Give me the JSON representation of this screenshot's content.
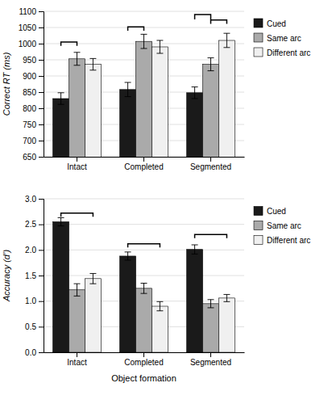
{
  "chart_data": [
    {
      "type": "bar",
      "categories": [
        "Intact",
        "Completed",
        "Segmented"
      ],
      "series": [
        {
          "name": "Cued",
          "color": "#1a1a1a",
          "values": [
            830,
            858,
            848
          ],
          "errors": [
            18,
            22,
            18
          ]
        },
        {
          "name": "Same arc",
          "color": "#aaaaaa",
          "values": [
            953,
            1007,
            936
          ],
          "errors": [
            20,
            22,
            20
          ]
        },
        {
          "name": "Different arc",
          "color": "#f0f0f0",
          "values": [
            936,
            990,
            1010
          ],
          "errors": [
            18,
            20,
            22
          ]
        }
      ],
      "ylabel": "Correct RT (ms)",
      "ylim": [
        650,
        1100
      ],
      "yticks": [
        650,
        700,
        750,
        800,
        850,
        900,
        950,
        1000,
        1050,
        1100
      ],
      "grid": true,
      "legend": "right",
      "brackets": [
        {
          "category": "Intact",
          "from": "Cued",
          "to": "Same arc",
          "y": 1005,
          "drop": 12
        },
        {
          "category": "Completed",
          "from": "Cued",
          "to": "Same arc",
          "y": 1052,
          "drop": 12
        },
        {
          "category": "Segmented",
          "from": "Cued",
          "to": "Same arc",
          "y": 1090,
          "drop": 15
        },
        {
          "category": "Segmented",
          "from": "Same arc",
          "to": "Different arc",
          "y": 1073,
          "drop": 12
        }
      ]
    },
    {
      "type": "bar",
      "categories": [
        "Intact",
        "Completed",
        "Segmented"
      ],
      "series": [
        {
          "name": "Cued",
          "color": "#1a1a1a",
          "values": [
            2.55,
            1.88,
            2.01
          ],
          "errors": [
            0.08,
            0.08,
            0.09
          ]
        },
        {
          "name": "Same arc",
          "color": "#aaaaaa",
          "values": [
            1.22,
            1.25,
            0.95
          ],
          "errors": [
            0.12,
            0.1,
            0.08
          ]
        },
        {
          "name": "Different arc",
          "color": "#f0f0f0",
          "values": [
            1.44,
            0.9,
            1.06
          ],
          "errors": [
            0.1,
            0.09,
            0.07
          ]
        }
      ],
      "xlabel": "Object formation",
      "ylabel": "Accuracy (d’)",
      "ylim": [
        0,
        3
      ],
      "yticks": [
        {
          "value": 0,
          "label": "0.0"
        },
        0.5,
        {
          "value": 1,
          "label": "1.0"
        },
        1.5,
        {
          "value": 2,
          "label": "2.0"
        },
        2.5,
        {
          "value": 3,
          "label": "3.0"
        }
      ],
      "grid": true,
      "legend": "right",
      "brackets": [
        {
          "category": "Intact",
          "from": "Cued",
          "to": "Different arc",
          "y": 2.72,
          "drop": 0.07
        },
        {
          "category": "Completed",
          "from": "Cued",
          "to": "Different arc",
          "y": 2.12,
          "drop": 0.07
        },
        {
          "category": "Segmented",
          "from": "Cued",
          "to": "Different arc",
          "y": 2.3,
          "drop": 0.07
        }
      ]
    }
  ]
}
